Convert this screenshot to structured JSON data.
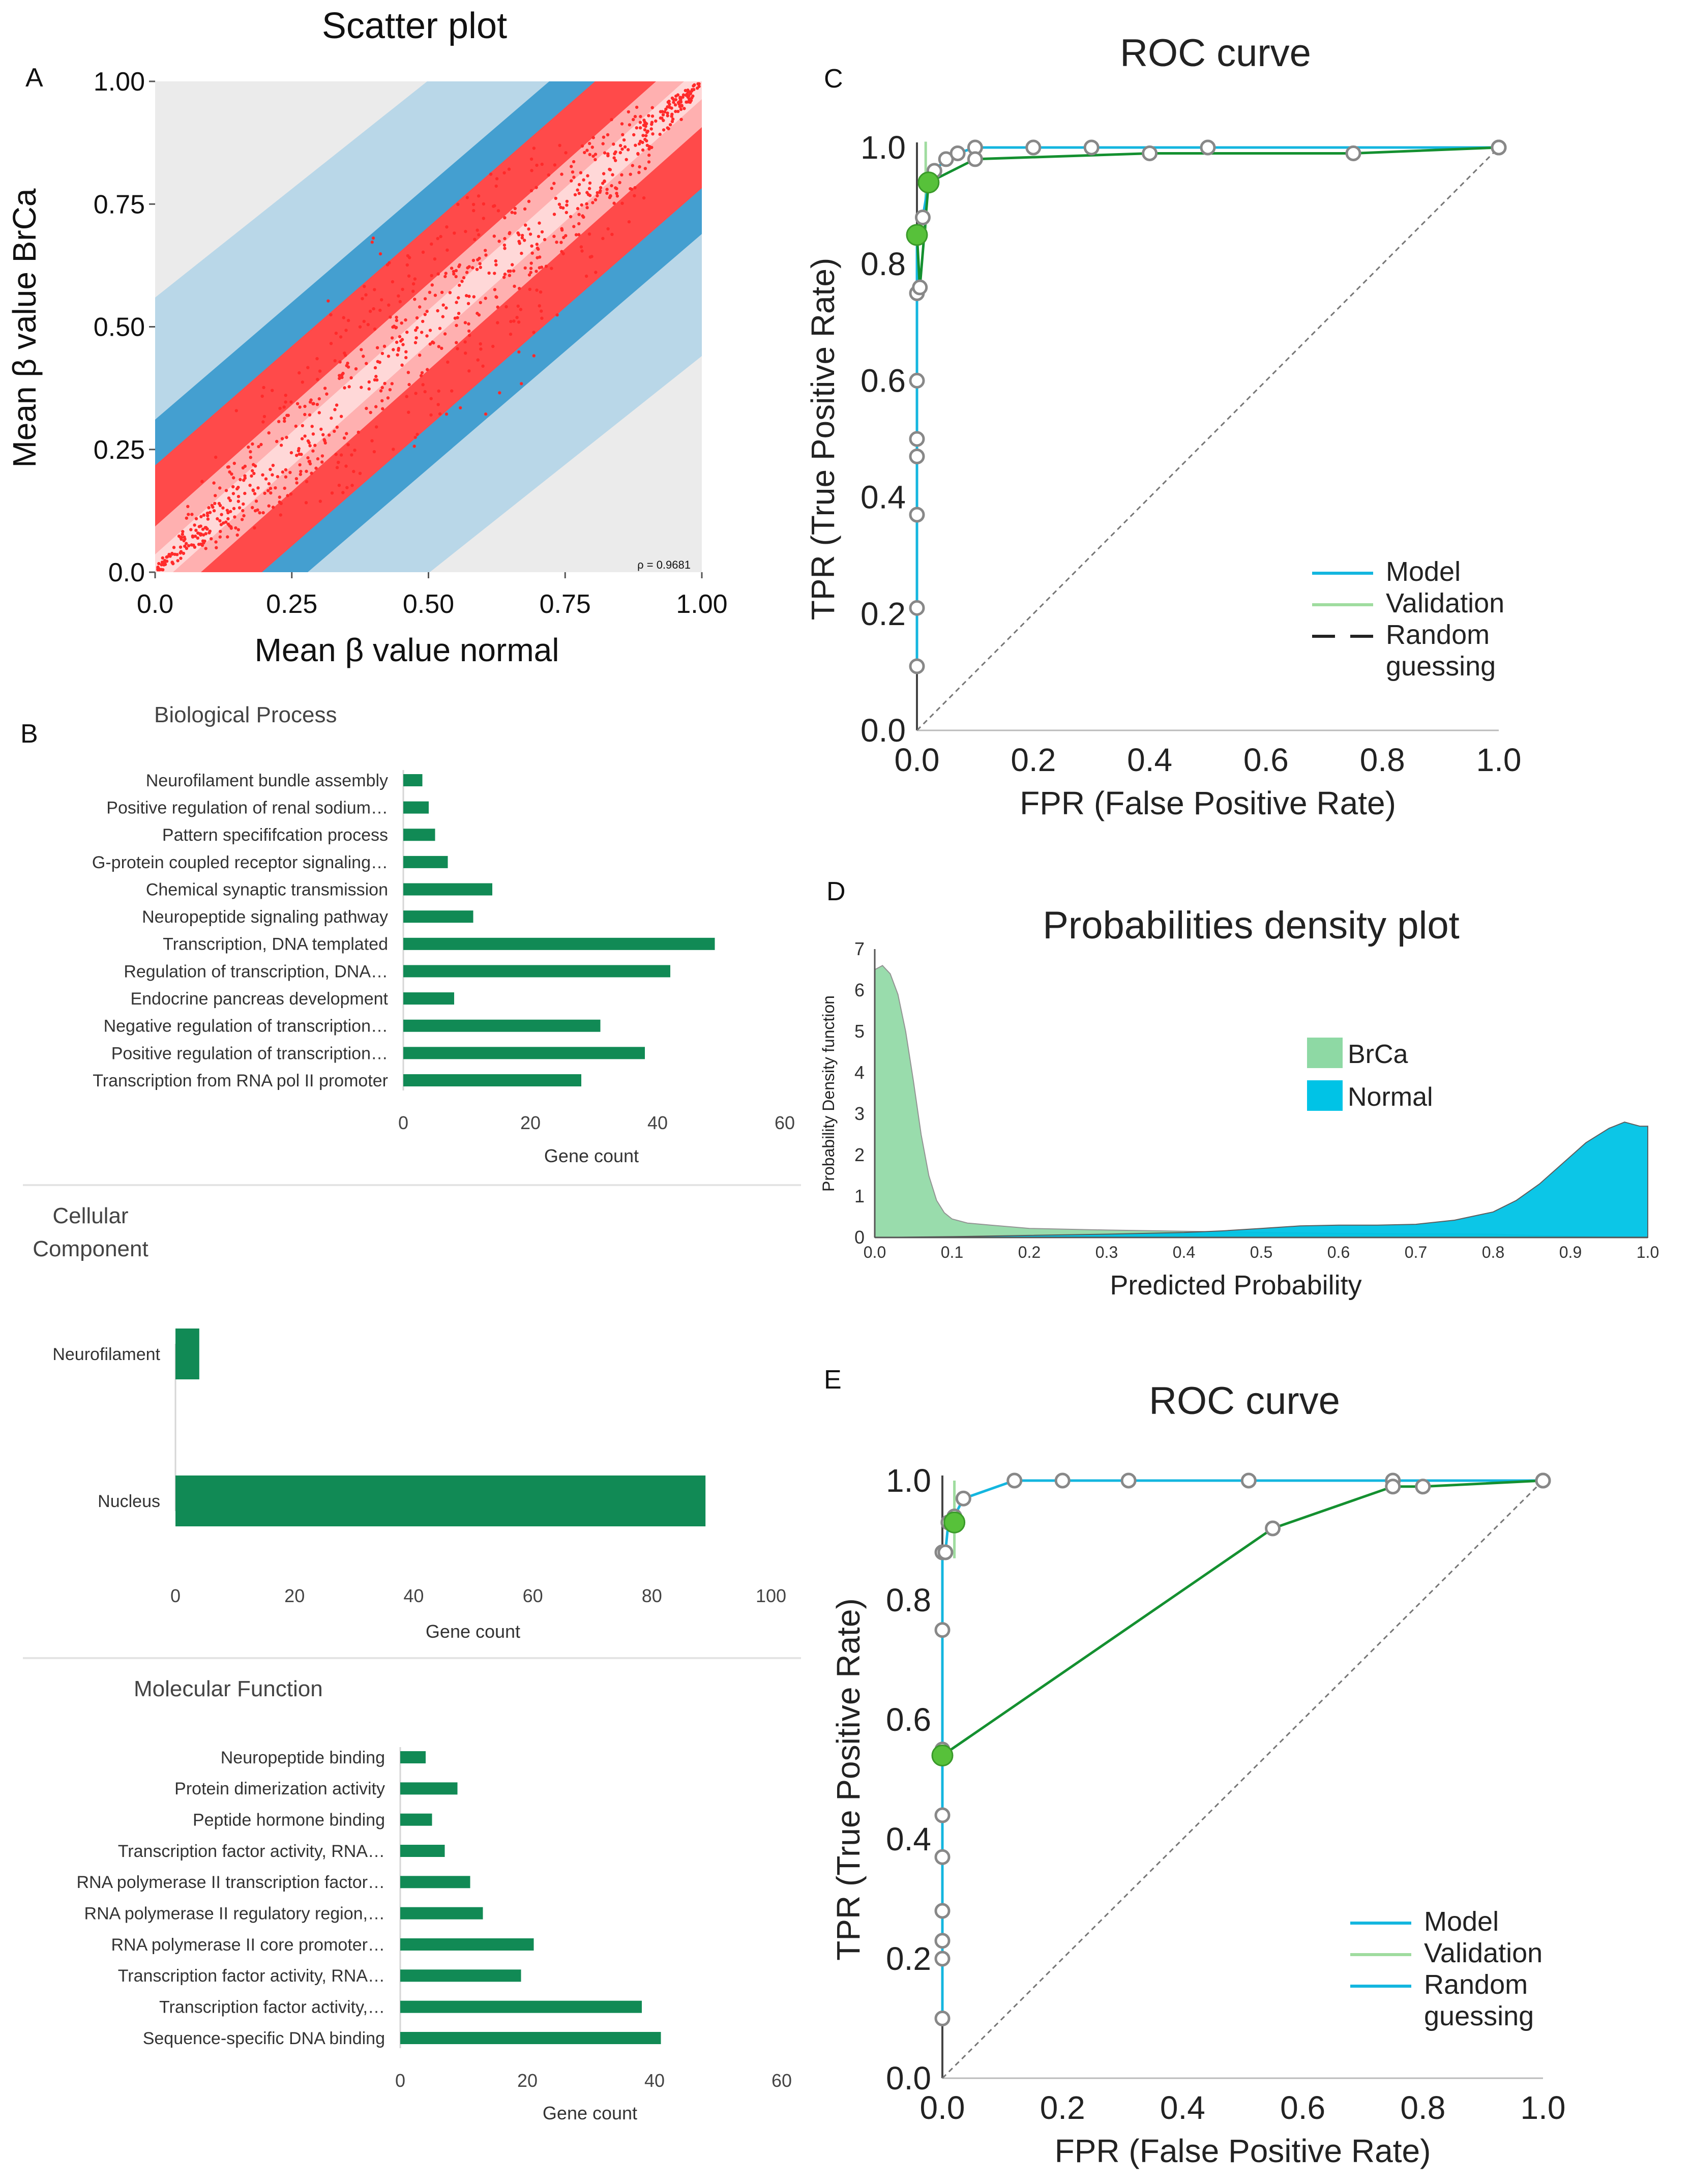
{
  "colors": {
    "bar_green": "#118a55",
    "model_blue": "#14b6df",
    "validation_green": "#9fdc9f",
    "curve_green": "#149030",
    "marker_green": "#57c13a",
    "density_brca": "#8ed9a4",
    "density_normal": "#00c3e6",
    "scatter_red": "#ff2a2a",
    "scatter_blue": "#1e8cc8",
    "separator": "#e4e4e4"
  },
  "chart_data": [
    {
      "id": "A",
      "panel_letter": "A",
      "type": "scatter",
      "title": "Scatter plot",
      "xlabel": "Mean β value normal",
      "ylabel": "Mean β value BrCa",
      "xlim": [
        0,
        1
      ],
      "ylim": [
        0,
        1
      ],
      "x_ticks": [
        0.0,
        0.25,
        0.5,
        0.75,
        1.0
      ],
      "y_ticks": [
        0.0,
        0.25,
        0.5,
        0.75,
        1.0
      ],
      "x_tick_labels": [
        "0.0",
        "0.25",
        "0.50",
        "0.75",
        "1.00"
      ],
      "y_tick_labels": [
        "0.0",
        "0.25",
        "0.50",
        "0.75",
        "1.00"
      ],
      "annotation": "ρ = 0.9681",
      "density_center": [
        [
          0,
          0
        ],
        [
          1,
          1
        ]
      ],
      "density_description": "dense cloud of points along the diagonal"
    },
    {
      "id": "B1",
      "panel_letter": "B",
      "type": "bar",
      "orientation": "horizontal",
      "title": "Biological Process",
      "xlabel": "Gene count",
      "xlim": [
        0,
        60
      ],
      "x_ticks": [
        0,
        20,
        40,
        60
      ],
      "categories": [
        "Neurofilament bundle assembly",
        "Positive regulation of renal sodium…",
        "Pattern specififcation process",
        "G-protein coupled receptor signaling…",
        "Chemical synaptic transmission",
        "Neuropeptide signaling pathway",
        "Transcription, DNA templated",
        "Regulation of transcription, DNA…",
        "Endocrine pancreas development",
        "Negative regulation of transcription…",
        "Positive regulation of transcription…",
        "Transcription from RNA pol II promoter"
      ],
      "values": [
        3,
        4,
        5,
        7,
        14,
        11,
        49,
        42,
        8,
        31,
        38,
        28
      ]
    },
    {
      "id": "B2",
      "type": "bar",
      "orientation": "horizontal",
      "title": "Cellular Component",
      "title_lines": [
        "Cellular",
        "Component"
      ],
      "xlabel": "Gene count",
      "xlim": [
        0,
        100
      ],
      "x_ticks": [
        0,
        20,
        40,
        60,
        80,
        100
      ],
      "categories": [
        "Neurofilament",
        "Nucleus"
      ],
      "values": [
        4,
        89
      ]
    },
    {
      "id": "B3",
      "type": "bar",
      "orientation": "horizontal",
      "title": "Molecular Function",
      "xlabel": "Gene count",
      "xlim": [
        0,
        60
      ],
      "x_ticks": [
        0,
        20,
        40,
        60
      ],
      "categories": [
        "Neuropeptide binding",
        "Protein dimerization activity",
        "Peptide hormone binding",
        "Transcription factor activity, RNA…",
        "RNA polymerase II transcription factor…",
        "RNA polymerase II regulatory region,…",
        "RNA polymerase II core promoter…",
        "Transcription factor activity, RNA…",
        "Transcription factor activity,…",
        "Sequence-specific DNA binding"
      ],
      "values": [
        4,
        9,
        5,
        7,
        11,
        13,
        21,
        19,
        38,
        41
      ]
    },
    {
      "id": "C",
      "panel_letter": "C",
      "type": "line",
      "title": "ROC  curve",
      "xlabel": "FPR (False Positive Rate)",
      "ylabel": "TPR (True Positive Rate)",
      "xlim": [
        0,
        1
      ],
      "ylim": [
        0,
        1
      ],
      "x_ticks": [
        0.0,
        0.2,
        0.4,
        0.6,
        0.8,
        1.0
      ],
      "y_ticks": [
        0.0,
        0.2,
        0.4,
        0.6,
        0.8,
        1.0
      ],
      "x_tick_labels": [
        "0.0",
        "0.2",
        "0.4",
        "0.6",
        "0.8",
        "1.0"
      ],
      "y_tick_labels": [
        "0.0",
        "0.2",
        "0.4",
        "0.6",
        "0.8",
        "1.0"
      ],
      "legend": [
        "Model",
        "Validation",
        "Random",
        "guessing"
      ],
      "legend_styles": [
        "model",
        "validation",
        "dashed",
        "none"
      ],
      "series": [
        {
          "name": "Model",
          "style": "model",
          "x": [
            0.0,
            0.0,
            0.0,
            0.0,
            0.0,
            0.0,
            0.0,
            0.0,
            0.01,
            0.02,
            0.03,
            0.05,
            0.07,
            0.1,
            0.2,
            0.3,
            0.5,
            1.0
          ],
          "y": [
            0.11,
            0.21,
            0.37,
            0.47,
            0.5,
            0.6,
            0.75,
            0.85,
            0.88,
            0.94,
            0.96,
            0.98,
            0.99,
            1.0,
            1.0,
            1.0,
            1.0,
            1.0
          ],
          "markers": true
        },
        {
          "name": "Validation curve",
          "style": "curve",
          "x": [
            0.0,
            0.005,
            0.02,
            0.1,
            0.4,
            0.75,
            1.0
          ],
          "y": [
            0.85,
            0.76,
            0.94,
            0.98,
            0.99,
            0.99,
            1.0
          ],
          "markers": true
        },
        {
          "name": "Validation error bar",
          "style": "validation",
          "x": [
            0.015,
            0.015
          ],
          "y": [
            0.86,
            1.01
          ],
          "markers": false
        },
        {
          "name": "Random guessing",
          "style": "dashed",
          "x": [
            0.0,
            1.0
          ],
          "y": [
            0.0,
            1.0
          ],
          "markers": false
        }
      ],
      "highlight_points": [
        [
          0.0,
          0.85
        ],
        [
          0.02,
          0.94
        ]
      ]
    },
    {
      "id": "D",
      "panel_letter": "D",
      "type": "area",
      "title": "Probabilities density plot",
      "xlabel": "Predicted Probability",
      "ylabel": "Probability Density function",
      "xlim": [
        0,
        1
      ],
      "ylim": [
        0,
        7
      ],
      "x_ticks": [
        0.0,
        0.1,
        0.2,
        0.3,
        0.4,
        0.5,
        0.6,
        0.7,
        0.8,
        0.9,
        1.0
      ],
      "y_ticks": [
        0,
        1,
        2,
        3,
        4,
        5,
        6,
        7
      ],
      "x_tick_labels": [
        "0.0",
        "0.1",
        "0.2",
        "0.3",
        "0.4",
        "0.5",
        "0.6",
        "0.7",
        "0.8",
        "0.9",
        "1.0"
      ],
      "legend": [
        "BrCa",
        "Normal"
      ],
      "series": [
        {
          "name": "BrCa",
          "x": [
            0.0,
            0.01,
            0.02,
            0.03,
            0.04,
            0.05,
            0.06,
            0.07,
            0.08,
            0.09,
            0.1,
            0.12,
            0.15,
            0.2,
            0.3,
            0.4,
            0.5,
            0.6,
            0.7,
            0.8,
            0.85,
            0.9,
            0.95,
            1.0
          ],
          "y": [
            6.5,
            6.6,
            6.4,
            5.9,
            5.0,
            3.8,
            2.5,
            1.5,
            0.9,
            0.6,
            0.45,
            0.35,
            0.3,
            0.22,
            0.18,
            0.15,
            0.12,
            0.1,
            0.09,
            0.08,
            0.05,
            0.03,
            0.01,
            0.0
          ]
        },
        {
          "name": "Normal",
          "x": [
            0.0,
            0.1,
            0.2,
            0.3,
            0.4,
            0.45,
            0.5,
            0.55,
            0.6,
            0.65,
            0.7,
            0.75,
            0.8,
            0.83,
            0.86,
            0.89,
            0.92,
            0.95,
            0.97,
            0.99,
            1.0
          ],
          "y": [
            0.0,
            0.02,
            0.05,
            0.08,
            0.12,
            0.16,
            0.22,
            0.28,
            0.3,
            0.3,
            0.32,
            0.42,
            0.62,
            0.9,
            1.3,
            1.8,
            2.3,
            2.65,
            2.8,
            2.7,
            2.7
          ]
        }
      ]
    },
    {
      "id": "E",
      "panel_letter": "E",
      "type": "line",
      "title": "ROC  curve",
      "xlabel": "FPR (False Positive Rate)",
      "ylabel": "TPR (True Positive Rate)",
      "xlim": [
        0,
        1
      ],
      "ylim": [
        0,
        1
      ],
      "x_ticks": [
        0.0,
        0.2,
        0.4,
        0.6,
        0.8,
        1.0
      ],
      "y_ticks": [
        0.0,
        0.2,
        0.4,
        0.6,
        0.8,
        1.0
      ],
      "x_tick_labels": [
        "0.0",
        "0.2",
        "0.4",
        "0.6",
        "0.8",
        "1.0"
      ],
      "y_tick_labels": [
        "0.0",
        "0.2",
        "0.4",
        "0.6",
        "0.8",
        "1.0"
      ],
      "legend": [
        "Model",
        "Validation",
        "Random",
        "guessing"
      ],
      "legend_styles": [
        "model",
        "validation",
        "model",
        "none"
      ],
      "series": [
        {
          "name": "Model",
          "style": "model",
          "x": [
            0.0,
            0.0,
            0.0,
            0.0,
            0.0,
            0.0,
            0.0,
            0.0,
            0.0,
            0.005,
            0.01,
            0.02,
            0.035,
            0.12,
            0.2,
            0.31,
            0.51,
            0.75,
            1.0
          ],
          "y": [
            0.1,
            0.2,
            0.23,
            0.28,
            0.37,
            0.44,
            0.55,
            0.75,
            0.88,
            0.88,
            0.93,
            0.94,
            0.97,
            1.0,
            1.0,
            1.0,
            1.0,
            1.0,
            1.0
          ],
          "markers": true
        },
        {
          "name": "Validation curve",
          "style": "curve",
          "x": [
            0.0,
            0.55,
            0.75,
            0.8,
            1.0
          ],
          "y": [
            0.54,
            0.92,
            0.99,
            0.99,
            1.0
          ],
          "markers": true
        },
        {
          "name": "Validation error bar",
          "style": "validation",
          "x": [
            0.02,
            0.02
          ],
          "y": [
            0.87,
            1.0
          ],
          "markers": false
        },
        {
          "name": "Random guessing",
          "style": "dashed",
          "x": [
            0.0,
            1.0
          ],
          "y": [
            0.0,
            1.0
          ],
          "markers": false
        }
      ],
      "highlight_points": [
        [
          0.0,
          0.54
        ],
        [
          0.02,
          0.93
        ]
      ]
    }
  ]
}
